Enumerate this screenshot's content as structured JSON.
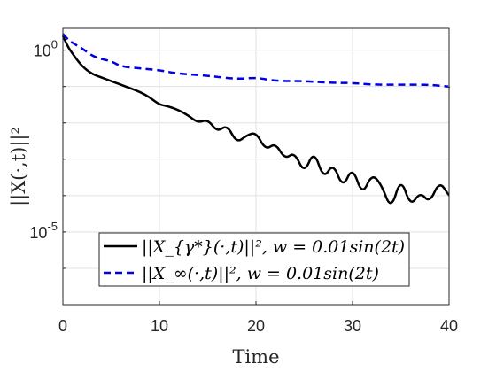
{
  "chart_data": {
    "type": "line",
    "xlabel": "Time",
    "ylabel": "||X(·,t)||²",
    "xlim": [
      0,
      40
    ],
    "ylim_log10": [
      -7,
      0.6
    ],
    "yscale": "log",
    "grid": true,
    "legend_position": "bottom-right",
    "x_ticks": [
      "0",
      "10",
      "20",
      "30",
      "40"
    ],
    "y_ticks": [
      {
        "base": "10",
        "exp": "0",
        "log10": 0
      },
      {
        "base": "10",
        "exp": "-5",
        "log10": -5
      }
    ],
    "series": [
      {
        "name": "||X_{γ*}(·,t)||², w = 0.01sin(2t)",
        "color": "#000000",
        "style": "solid",
        "x": [
          0,
          0.5,
          1,
          2,
          3,
          4,
          5,
          6,
          7,
          8,
          9,
          10,
          11,
          12,
          13,
          14,
          15,
          16,
          17,
          18,
          19,
          20,
          21,
          22,
          23,
          24,
          25,
          26,
          27,
          28,
          29,
          30,
          31,
          32,
          33,
          34,
          35,
          36,
          37,
          38,
          39,
          40
        ],
        "log10_y": [
          0.4,
          0.1,
          -0.1,
          -0.45,
          -0.65,
          -0.75,
          -0.85,
          -0.95,
          -1.05,
          -1.15,
          -1.3,
          -1.5,
          -1.55,
          -1.65,
          -1.8,
          -2.0,
          -1.9,
          -2.25,
          -2.05,
          -2.55,
          -2.35,
          -2.25,
          -2.75,
          -2.55,
          -3.0,
          -2.8,
          -3.4,
          -2.75,
          -3.55,
          -3.1,
          -3.8,
          -3.2,
          -4.0,
          -3.4,
          -3.7,
          -4.4,
          -3.5,
          -4.3,
          -3.9,
          -4.2,
          -3.6,
          -4.0
        ]
      },
      {
        "name": "||X_∞(·,t)||², w = 0.01sin(2t)",
        "color": "#0000e6",
        "style": "dashed",
        "x": [
          0,
          0.5,
          1,
          2,
          3,
          4,
          5,
          6,
          8,
          10,
          12,
          15,
          18,
          20,
          22,
          25,
          28,
          30,
          32,
          35,
          38,
          40
        ],
        "log10_y": [
          0.45,
          0.3,
          0.2,
          0.05,
          -0.15,
          -0.25,
          -0.3,
          -0.45,
          -0.5,
          -0.55,
          -0.65,
          -0.7,
          -0.8,
          -0.75,
          -0.85,
          -0.85,
          -0.9,
          -0.9,
          -0.95,
          -0.95,
          -0.95,
          -1.0
        ]
      }
    ]
  },
  "legend": {
    "entries": [
      {
        "text": "||X_{γ*}(·,t)||², w = 0.01sin(2t)"
      },
      {
        "text": "||X_∞(·,t)||², w = 0.01sin(2t)"
      }
    ]
  }
}
